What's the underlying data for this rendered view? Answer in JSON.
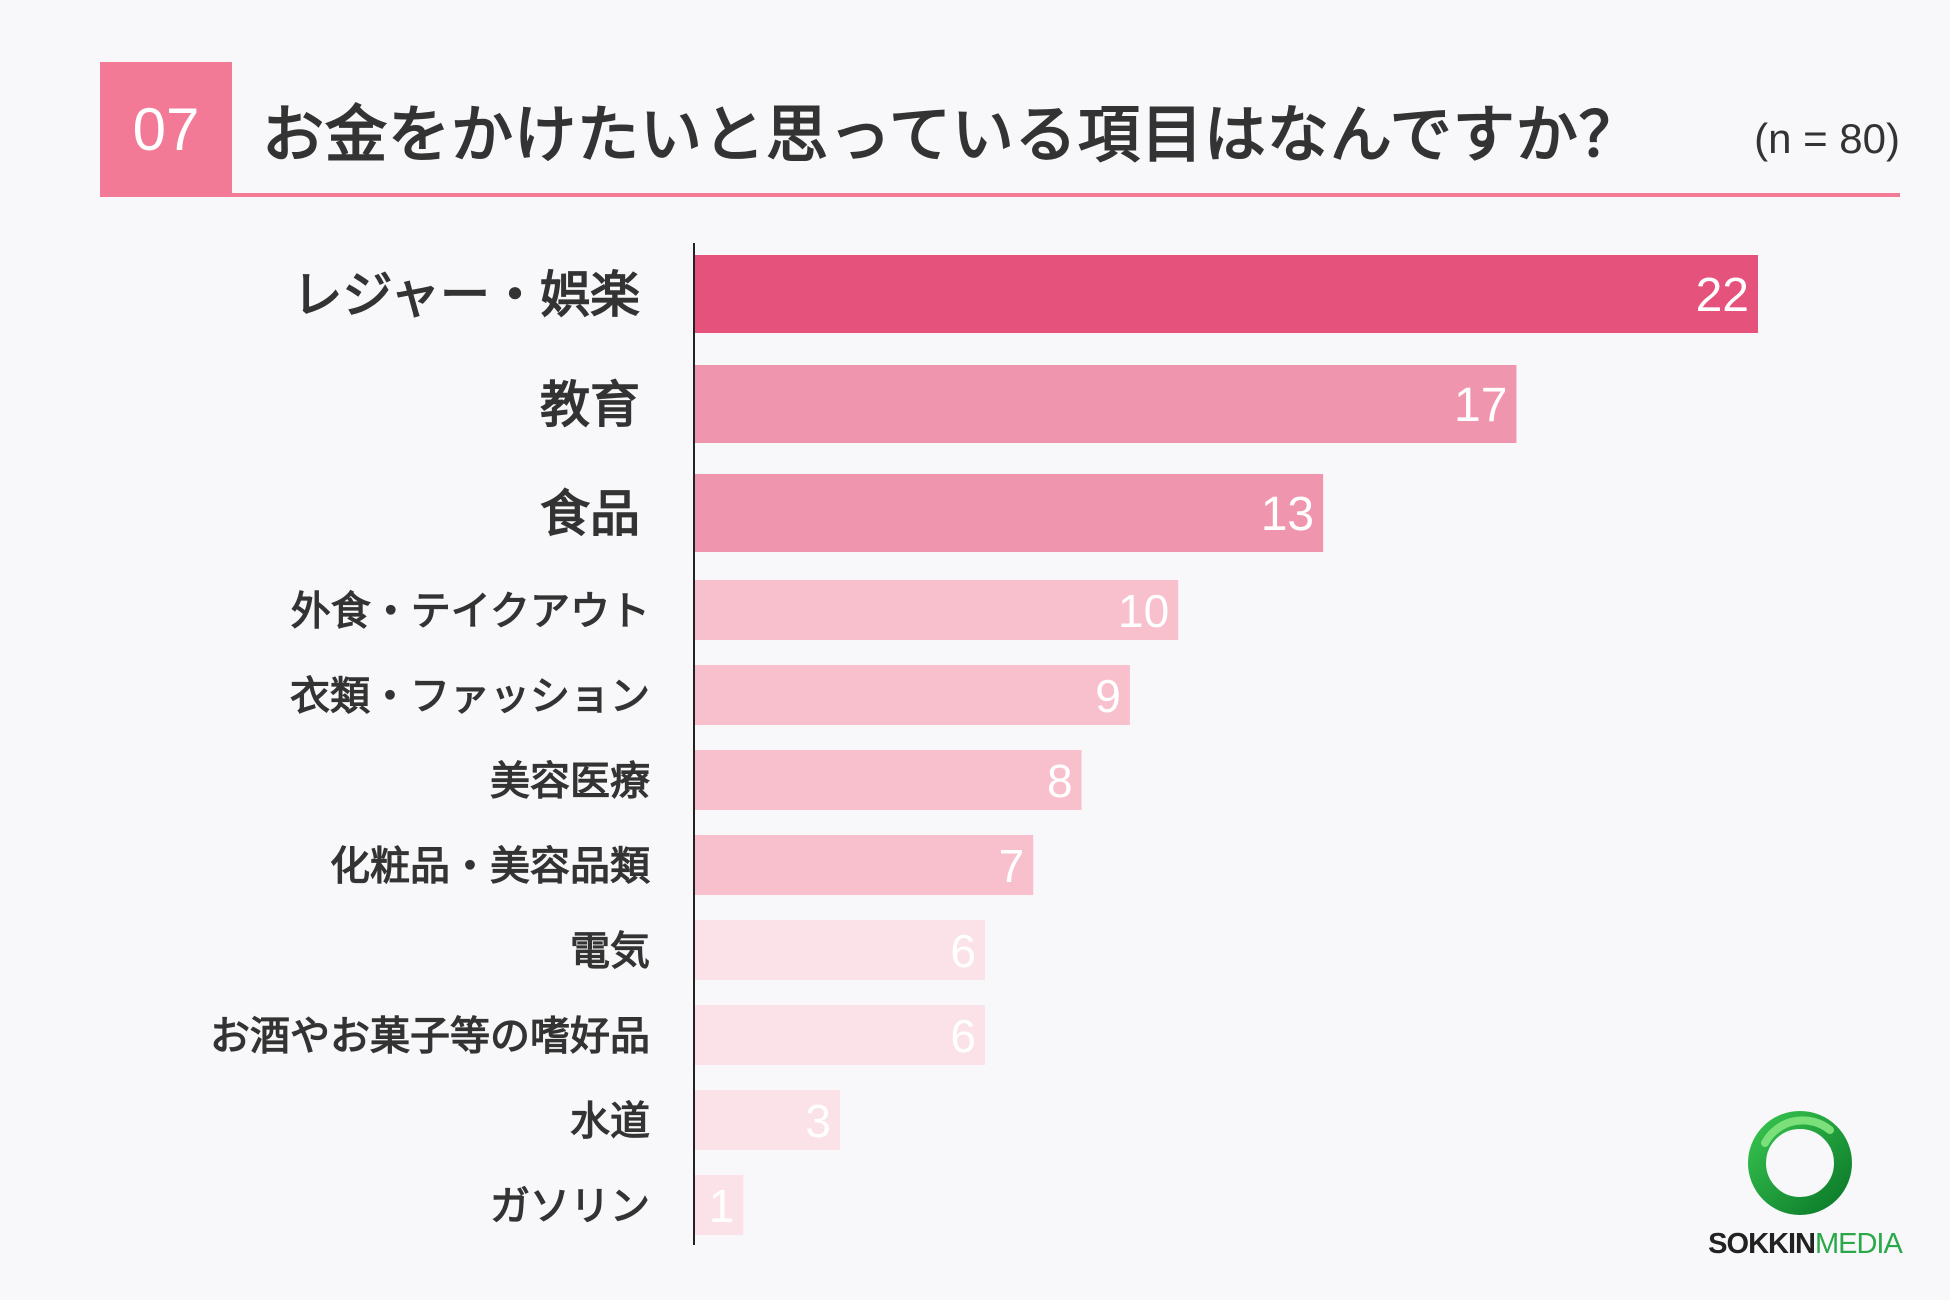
{
  "header": {
    "number": "07",
    "title": "お金をかけたいと思っている項目はなんですか？",
    "sample": "(n = 80)"
  },
  "colors": {
    "accent": "#f27a96",
    "bar_top": "#e5537d",
    "bar_mid": "#ef95ae",
    "bar_light": "#f7c0cc",
    "bar_pale": "#fbe2e8"
  },
  "logo": {
    "name_part1": "SOKKIN",
    "name_part2": "MEDIA"
  },
  "chart_data": {
    "type": "bar",
    "orientation": "horizontal",
    "categories": [
      "レジャー・娯楽",
      "教育",
      "食品",
      "外食・テイクアウト",
      "衣類・ファッション",
      "美容医療",
      "化粧品・美容品類",
      "電気",
      "お酒やお菓子等の嗜好品",
      "水道",
      "ガソリン"
    ],
    "values": [
      22,
      17,
      13,
      10,
      9,
      8,
      7,
      6,
      6,
      3,
      1
    ],
    "data_labels": [
      "22",
      "17",
      "13",
      "10",
      "9",
      "8",
      "7",
      "6",
      "6",
      "3",
      "1"
    ],
    "xlim": [
      0,
      22
    ],
    "grid": false,
    "legend": "none"
  }
}
